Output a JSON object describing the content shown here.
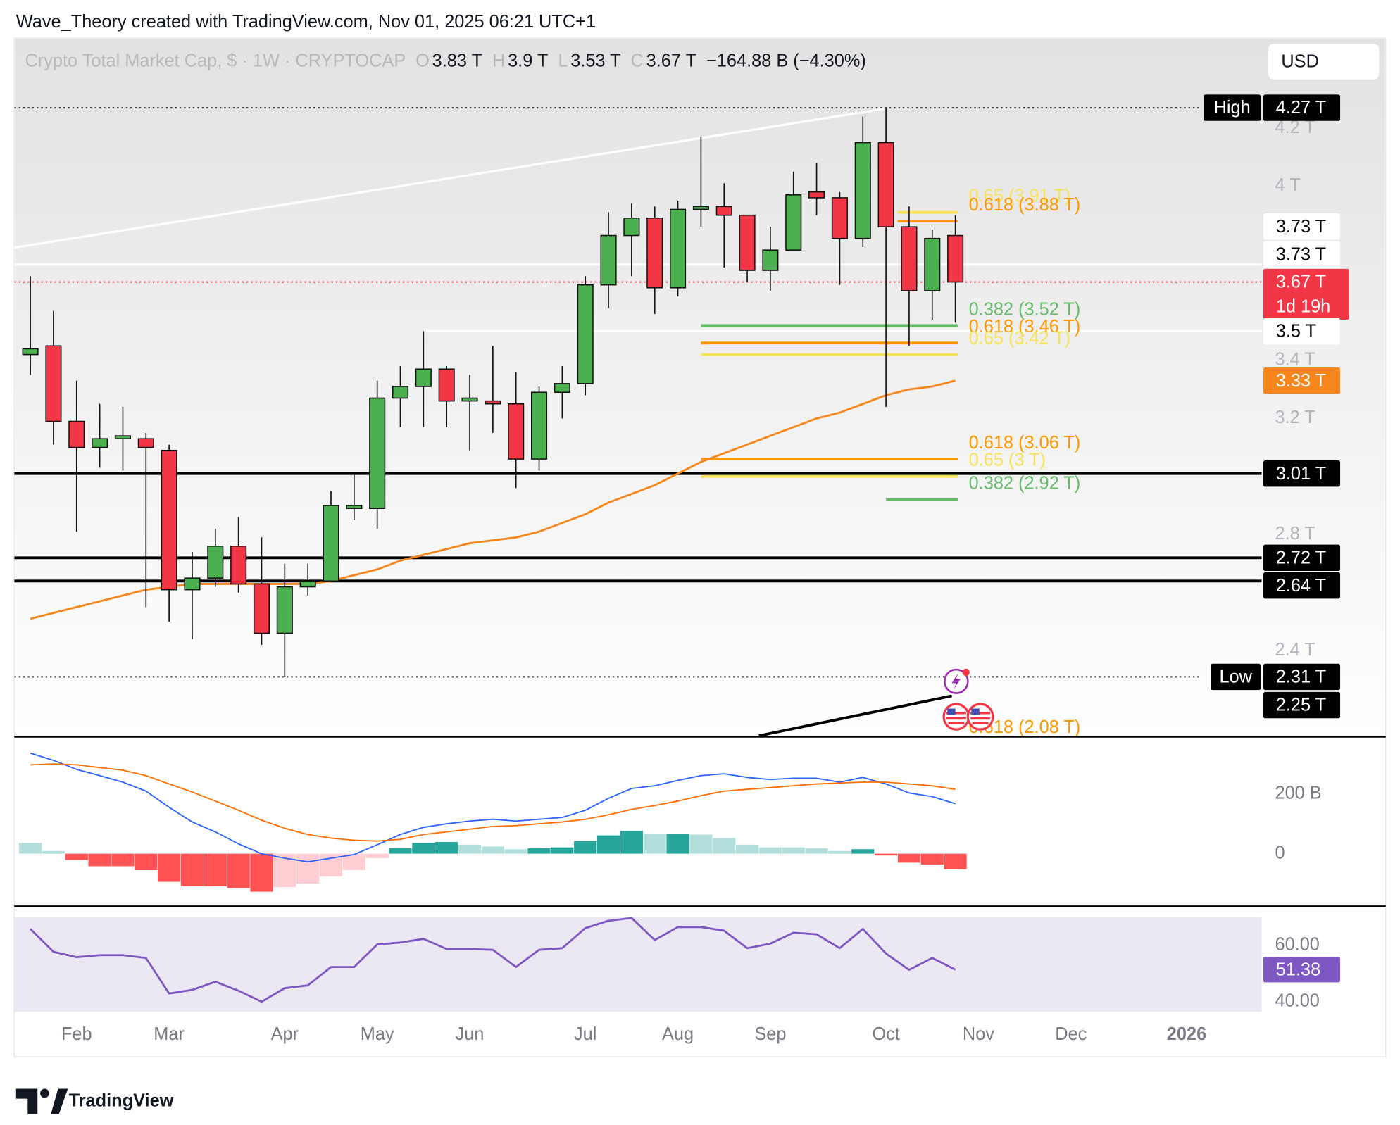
{
  "header": {
    "attribution": "Wave_Theory created with TradingView.com, Nov 01, 2025 06:21 UTC+1",
    "brand": "TradingView"
  },
  "chart_data": [
    {
      "type": "candlestick",
      "title": "Crypto Total Market Cap, $ · 1W · CRYPTOCAP",
      "ohlc_legend": [
        {
          "key": "O",
          "text": "3.83 T"
        },
        {
          "key": "H",
          "text": "3.9 T"
        },
        {
          "key": "L",
          "text": "3.53 T"
        },
        {
          "key": "C",
          "text": "3.67 T"
        }
      ],
      "change": "−164.88 B (−4.30%)",
      "currency": "USD",
      "categories": [
        null,
        null,
        "Feb",
        null,
        null,
        null,
        "Mar",
        null,
        null,
        null,
        null,
        "Apr",
        null,
        null,
        null,
        "May",
        null,
        null,
        null,
        "Jun",
        null,
        null,
        null,
        null,
        "Jul",
        null,
        null,
        null,
        "Aug",
        null,
        null,
        null,
        "Sep",
        null,
        null,
        null,
        null,
        "Oct",
        null,
        null,
        null,
        "Nov",
        null,
        null,
        null,
        "Dec",
        null,
        null,
        null,
        null,
        "2026",
        null,
        null,
        null
      ],
      "open": [
        3.42,
        3.45,
        3.19,
        3.1,
        3.13,
        3.13,
        3.09,
        2.61,
        2.65,
        2.76,
        2.63,
        2.46,
        2.62,
        2.64,
        2.89,
        2.89,
        3.27,
        3.31,
        3.37,
        3.26,
        3.26,
        3.25,
        3.06,
        3.29,
        3.32,
        3.66,
        3.83,
        3.89,
        3.65,
        3.92,
        3.93,
        3.9,
        3.71,
        3.78,
        3.98,
        3.96,
        3.82,
        4.15,
        3.86,
        3.64,
        3.83,
        null,
        null,
        null,
        null,
        null,
        null,
        null,
        null,
        null,
        null,
        null,
        null,
        null
      ],
      "high": [
        3.69,
        3.57,
        3.33,
        3.25,
        3.24,
        3.15,
        3.11,
        2.74,
        2.82,
        2.86,
        2.79,
        2.7,
        2.7,
        2.95,
        3.01,
        3.33,
        3.38,
        3.5,
        3.38,
        3.35,
        3.45,
        3.36,
        3.31,
        3.38,
        3.69,
        3.91,
        3.94,
        3.93,
        3.95,
        4.17,
        4.01,
        3.9,
        3.86,
        4.05,
        4.08,
        3.98,
        4.24,
        4.27,
        3.93,
        3.85,
        3.9,
        null,
        null,
        null,
        null,
        null,
        null,
        null,
        null,
        null,
        null,
        null,
        null,
        null
      ],
      "low": [
        3.35,
        3.11,
        2.81,
        3.03,
        3.02,
        2.55,
        2.5,
        2.44,
        2.62,
        2.6,
        2.42,
        2.31,
        2.59,
        2.64,
        2.85,
        2.82,
        3.17,
        3.17,
        3.17,
        3.09,
        3.15,
        2.96,
        3.02,
        3.2,
        3.28,
        3.58,
        3.69,
        3.56,
        3.62,
        3.86,
        3.72,
        3.67,
        3.64,
        3.78,
        3.9,
        3.66,
        3.79,
        3.24,
        3.45,
        3.54,
        3.53,
        null,
        null,
        null,
        null,
        null,
        null,
        null,
        null,
        null,
        null,
        null,
        null,
        null
      ],
      "close": [
        3.44,
        3.19,
        3.1,
        3.13,
        3.14,
        3.1,
        2.61,
        2.65,
        2.76,
        2.63,
        2.46,
        2.62,
        2.64,
        2.9,
        2.9,
        3.27,
        3.31,
        3.37,
        3.26,
        3.27,
        3.25,
        3.06,
        3.29,
        3.32,
        3.66,
        3.83,
        3.89,
        3.65,
        3.92,
        3.93,
        3.9,
        3.71,
        3.78,
        3.97,
        3.96,
        3.82,
        4.15,
        3.86,
        3.64,
        3.82,
        3.67,
        null,
        null,
        null,
        null,
        null,
        null,
        null,
        null,
        null,
        null,
        null,
        null,
        null
      ],
      "up_color": "#4caf50",
      "down_color": "#f23645",
      "overlays": [
        {
          "type": "line",
          "color": "#f7861c",
          "values": [
            2.51,
            2.53,
            2.55,
            2.57,
            2.59,
            2.61,
            2.62,
            2.63,
            2.63,
            2.63,
            2.63,
            2.63,
            2.63,
            2.64,
            2.66,
            2.68,
            2.71,
            2.73,
            2.75,
            2.77,
            2.78,
            2.79,
            2.81,
            2.84,
            2.87,
            2.91,
            2.94,
            2.97,
            3.01,
            3.05,
            3.08,
            3.11,
            3.14,
            3.17,
            3.2,
            3.22,
            3.25,
            3.28,
            3.3,
            3.31,
            3.33,
            null,
            null,
            null,
            null,
            null,
            null,
            null,
            null,
            null,
            null,
            null,
            null,
            null
          ]
        }
      ],
      "ylim": [
        2.11,
        4.51
      ],
      "yticks": [
        {
          "value": 4.2,
          "label": "4.2 T"
        },
        {
          "value": 4,
          "label": "4 T"
        },
        {
          "value": 3.4,
          "label": "3.4 T"
        },
        {
          "value": 3.2,
          "label": "3.2 T"
        },
        {
          "value": 2.8,
          "label": "2.8 T"
        },
        {
          "value": 2.4,
          "label": "2.4 T"
        }
      ],
      "price_labels": [
        {
          "tag": "High",
          "value": 4.27,
          "label": "4.27 T",
          "bg": "#000000",
          "fg": "#ffffff",
          "line": "#333333",
          "dash": true
        },
        {
          "value": 3.73,
          "label": "3.73 T",
          "bg": "#ffffff",
          "fg": "#000000"
        },
        {
          "value": 3.73,
          "label": "3.73 T",
          "bg": "#ffffff",
          "fg": "#000000",
          "line": "#ffffff"
        },
        {
          "value": 3.67,
          "label": "3.67 T",
          "note": "1d 19h",
          "bg": "#f23645",
          "fg": "#ffffff",
          "line": "#f23645",
          "dash": true
        },
        {
          "value": 3.5,
          "label": "3.5 T",
          "bg": "#ffffff",
          "fg": "#000000",
          "line": "#ffffff"
        },
        {
          "value": 3.33,
          "label": "3.33 T",
          "bg": "#f7861c",
          "fg": "#ffffff"
        },
        {
          "value": 3.01,
          "label": "3.01 T",
          "bg": "#000000",
          "fg": "#ffffff",
          "line": "#000000"
        },
        {
          "value": 2.72,
          "label": "2.72 T",
          "bg": "#000000",
          "fg": "#ffffff",
          "line": "#000000"
        },
        {
          "value": 2.64,
          "label": "2.64 T",
          "bg": "#000000",
          "fg": "#ffffff",
          "line": "#000000"
        },
        {
          "tag": "Low",
          "value": 2.31,
          "label": "2.31 T",
          "bg": "#000000",
          "fg": "#ffffff",
          "line": "#333333",
          "dash": true
        },
        {
          "value": 2.25,
          "label": "2.25 T",
          "bg": "#000000",
          "fg": "#ffffff"
        }
      ],
      "fib_levels": [
        {
          "label": "0.65 (3.91 T)",
          "value": 3.91,
          "color": "#f7e35a"
        },
        {
          "label": "0.618 (3.88 T)",
          "value": 3.88,
          "color": "#ff9800"
        },
        {
          "label": "0.382 (3.52 T)",
          "value": 3.52,
          "color": "#66bb6a"
        },
        {
          "label": "0.618 (3.46 T)",
          "value": 3.46,
          "color": "#ff9800"
        },
        {
          "label": "0.65 (3.42 T)",
          "value": 3.42,
          "color": "#f7e35a"
        },
        {
          "label": "0.618 (3.06 T)",
          "value": 3.06,
          "color": "#ff9800"
        },
        {
          "label": "0.65 (3 T)",
          "value": 3,
          "color": "#f7e35a"
        },
        {
          "label": "0.382 (2.92 T)",
          "value": 2.92,
          "color": "#66bb6a"
        },
        {
          "label": "0.618 (2.08 T)",
          "value": 2.08,
          "color": "#ff9800"
        }
      ]
    },
    {
      "type": "macd",
      "series": [
        {
          "color": "#2962ff",
          "values": [
            336,
            312,
            282,
            261,
            239,
            209,
            155,
            106,
            73,
            33,
            0,
            -15,
            -27,
            -15,
            -3,
            30,
            64,
            88,
            100,
            109,
            115,
            109,
            115,
            121,
            145,
            185,
            218,
            227,
            245,
            261,
            267,
            255,
            248,
            252,
            252,
            239,
            255,
            233,
            203,
            191,
            167,
            null,
            null,
            null,
            null,
            null,
            null,
            null,
            null,
            null,
            null,
            null,
            null,
            null
          ]
        },
        {
          "color": "#ff6d00",
          "values": [
            297,
            300,
            297,
            288,
            279,
            261,
            233,
            206,
            176,
            145,
            112,
            85,
            64,
            52,
            45,
            42,
            48,
            64,
            73,
            82,
            91,
            94,
            100,
            106,
            115,
            130,
            148,
            161,
            176,
            194,
            209,
            215,
            221,
            227,
            233,
            236,
            239,
            239,
            233,
            227,
            215,
            null,
            null,
            null,
            null,
            null,
            null,
            null,
            null,
            null,
            null,
            null,
            null,
            null
          ]
        }
      ],
      "histogram": {
        "values": [
          36,
          9,
          -21,
          -42,
          -42,
          -55,
          -94,
          -109,
          -109,
          -115,
          -127,
          -112,
          -100,
          -76,
          -55,
          -15,
          18,
          36,
          39,
          30,
          24,
          15,
          18,
          21,
          42,
          61,
          76,
          67,
          67,
          64,
          52,
          30,
          21,
          21,
          18,
          9,
          15,
          -6,
          -30,
          -36,
          -52,
          null,
          null,
          null,
          null,
          null,
          null,
          null,
          null,
          null,
          null,
          null,
          null,
          null
        ],
        "colors": [
          "#b2dfdb",
          "#b2dfdb",
          "#ff5252",
          "#ff5252",
          "#ff5252",
          "#ff5252",
          "#ff5252",
          "#ff5252",
          "#ff5252",
          "#ff5252",
          "#ff5252",
          "#ffcdd2",
          "#ffcdd2",
          "#ffcdd2",
          "#ffcdd2",
          "#ffcdd2",
          "#26a69a",
          "#26a69a",
          "#26a69a",
          "#b2dfdb",
          "#b2dfdb",
          "#b2dfdb",
          "#26a69a",
          "#26a69a",
          "#26a69a",
          "#26a69a",
          "#26a69a",
          "#b2dfdb",
          "#26a69a",
          "#b2dfdb",
          "#b2dfdb",
          "#b2dfdb",
          "#b2dfdb",
          "#b2dfdb",
          "#b2dfdb",
          "#b2dfdb",
          "#26a69a",
          "#ff5252",
          "#ff5252",
          "#ff5252",
          "#ff5252",
          null,
          null,
          null,
          null,
          null,
          null,
          null,
          null,
          null,
          null,
          null,
          null,
          null
        ]
      },
      "ylim": [
        -173,
        388
      ],
      "yticks": [
        {
          "value": 200,
          "label": "200 B"
        },
        0
      ]
    },
    {
      "type": "rsi",
      "series": [
        {
          "color": "#7e57c2",
          "values": [
            65.8,
            57.7,
            55.8,
            56.5,
            56.5,
            55.5,
            42.9,
            44.2,
            47.1,
            43.9,
            40.0,
            44.8,
            45.8,
            52.3,
            52.3,
            60.3,
            61.0,
            62.3,
            58.7,
            58.7,
            58.4,
            52.3,
            58.4,
            59.0,
            66.1,
            68.7,
            69.7,
            61.9,
            66.5,
            66.5,
            65.2,
            59.0,
            60.6,
            64.5,
            63.9,
            59.0,
            65.8,
            57.1,
            51.3,
            55.5,
            51.38,
            null,
            null,
            null,
            null,
            null,
            null,
            null,
            null,
            null,
            null,
            null,
            null,
            null
          ]
        }
      ],
      "band": [
        30,
        70
      ],
      "band_color": "#ebe7f3",
      "ylim": [
        36.5,
        73.5
      ],
      "yticks": [
        {
          "value": 60,
          "label": "60.00"
        },
        {
          "value": 40,
          "label": "40.00"
        }
      ]
    }
  ]
}
